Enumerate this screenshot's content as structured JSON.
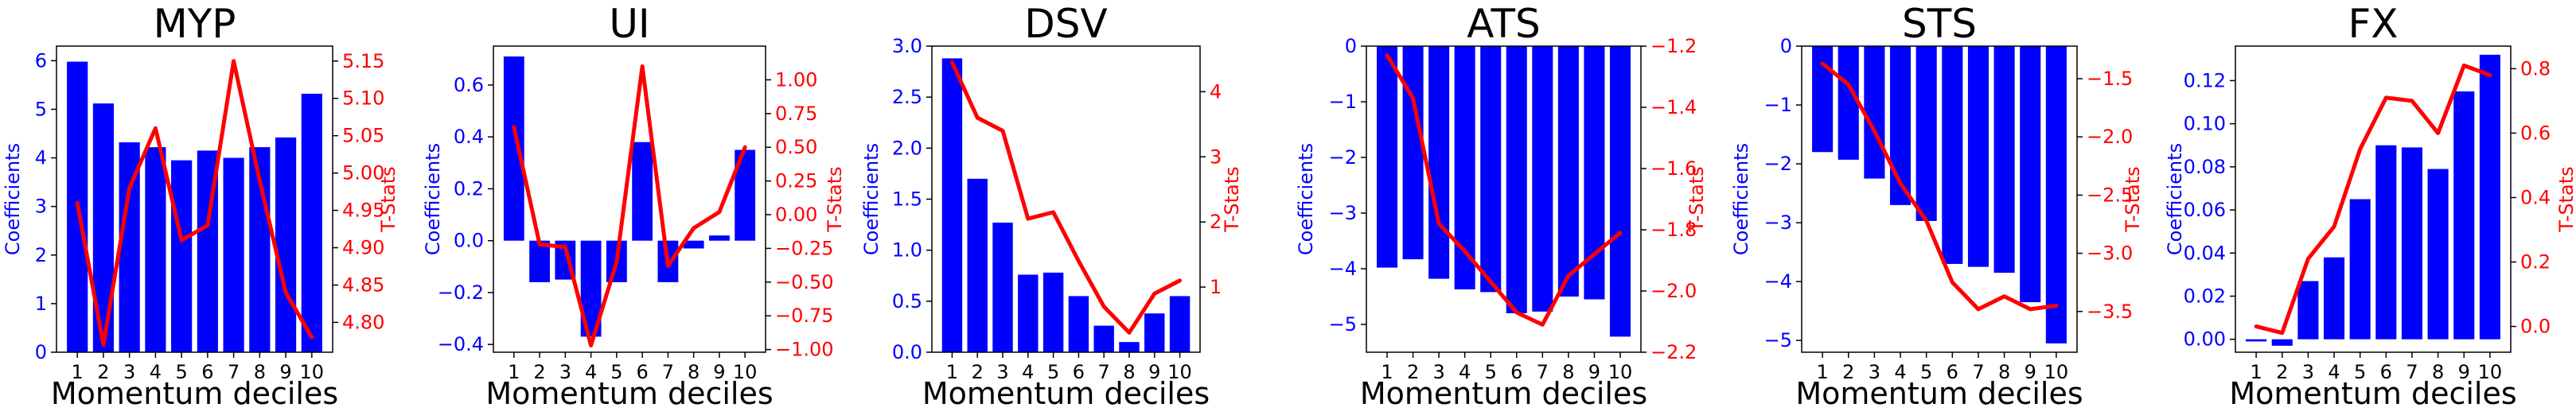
{
  "colors": {
    "bars": "#0000ff",
    "line": "#ff0000",
    "frame": "#000000"
  },
  "chart_data": [
    {
      "type": "bar",
      "title": "MYP",
      "xlabel": "Momentum deciles",
      "ylabel": "Coefficients",
      "y2label": "T-Stats",
      "categories": [
        "1",
        "2",
        "3",
        "4",
        "5",
        "6",
        "7",
        "8",
        "9",
        "10"
      ],
      "ylim": [
        0,
        6.3
      ],
      "yticks": [
        0,
        1,
        2,
        3,
        4,
        5,
        6
      ],
      "ytick_labels": [
        "0",
        "1",
        "2",
        "3",
        "4",
        "5",
        "6"
      ],
      "y2lim": [
        4.76,
        5.17
      ],
      "y2ticks": [
        4.8,
        4.85,
        4.9,
        4.95,
        5.0,
        5.05,
        5.1,
        5.15
      ],
      "y2tick_labels": [
        "4.80",
        "4.85",
        "4.90",
        "4.95",
        "5.00",
        "5.05",
        "5.10",
        "5.15"
      ],
      "series": [
        {
          "kind": "bar",
          "values": [
            5.98,
            5.12,
            4.32,
            4.22,
            3.95,
            4.15,
            4.0,
            4.22,
            4.42,
            5.32
          ]
        },
        {
          "kind": "line",
          "values": [
            4.96,
            4.77,
            4.98,
            5.06,
            4.91,
            4.93,
            5.15,
            4.99,
            4.84,
            4.78
          ]
        }
      ]
    },
    {
      "type": "bar",
      "title": "UI",
      "xlabel": "Momentum deciles",
      "ylabel": "Coefficients",
      "y2label": "T-Stats",
      "categories": [
        "1",
        "2",
        "3",
        "4",
        "5",
        "6",
        "7",
        "8",
        "9",
        "10"
      ],
      "ylim": [
        -0.43,
        0.75
      ],
      "yticks": [
        -0.4,
        -0.2,
        0.0,
        0.2,
        0.4,
        0.6
      ],
      "ytick_labels": [
        "−0.4",
        "−0.2",
        "0.0",
        "0.2",
        "0.4",
        "0.6"
      ],
      "y2lim": [
        -1.02,
        1.25
      ],
      "y2ticks": [
        -1.0,
        -0.75,
        -0.5,
        -0.25,
        0.0,
        0.25,
        0.5,
        0.75,
        1.0
      ],
      "y2tick_labels": [
        "−1.00",
        "−0.75",
        "−0.50",
        "−0.25",
        "0.00",
        "0.25",
        "0.50",
        "0.75",
        "1.00"
      ],
      "series": [
        {
          "kind": "bar",
          "values": [
            0.71,
            -0.16,
            -0.15,
            -0.37,
            -0.16,
            0.38,
            -0.16,
            -0.03,
            0.02,
            0.35
          ]
        },
        {
          "kind": "line",
          "values": [
            0.65,
            -0.22,
            -0.24,
            -0.97,
            -0.35,
            1.1,
            -0.38,
            -0.1,
            0.02,
            0.5
          ]
        }
      ]
    },
    {
      "type": "bar",
      "title": "DSV",
      "xlabel": "Momentum deciles",
      "ylabel": "Coefficients",
      "y2label": "T-Stats",
      "categories": [
        "1",
        "2",
        "3",
        "4",
        "5",
        "6",
        "7",
        "8",
        "9",
        "10"
      ],
      "ylim": [
        0,
        3.0
      ],
      "yticks": [
        0.0,
        0.5,
        1.0,
        1.5,
        2.0,
        2.5,
        3.0
      ],
      "ytick_labels": [
        "0.0",
        "0.5",
        "1.0",
        "1.5",
        "2.0",
        "2.5",
        "3.0"
      ],
      "y2lim": [
        0,
        4.7
      ],
      "y2ticks": [
        1,
        2,
        3,
        4
      ],
      "y2tick_labels": [
        "1",
        "2",
        "3",
        "4"
      ],
      "series": [
        {
          "kind": "bar",
          "values": [
            2.88,
            1.7,
            1.27,
            0.76,
            0.78,
            0.55,
            0.26,
            0.1,
            0.38,
            0.55
          ]
        },
        {
          "kind": "line",
          "values": [
            4.45,
            3.6,
            3.4,
            2.05,
            2.15,
            1.4,
            0.7,
            0.3,
            0.9,
            1.1
          ]
        }
      ]
    },
    {
      "type": "bar",
      "title": "ATS",
      "xlabel": "Momentum deciles",
      "ylabel": "Coefficients",
      "y2label": "T-Stats",
      "categories": [
        "1",
        "2",
        "3",
        "4",
        "5",
        "6",
        "7",
        "8",
        "9",
        "10"
      ],
      "ylim": [
        -5.5,
        0
      ],
      "yticks": [
        -5,
        -4,
        -3,
        -2,
        -1,
        0
      ],
      "ytick_labels": [
        "−5",
        "−4",
        "−3",
        "−2",
        "−1",
        "0"
      ],
      "y2lim": [
        -2.2,
        -1.2
      ],
      "y2ticks": [
        -2.2,
        -2.0,
        -1.8,
        -1.6,
        -1.4,
        -1.2
      ],
      "y2tick_labels": [
        "−2.2",
        "−2.0",
        "−1.8",
        "−1.6",
        "−1.4",
        "−1.2"
      ],
      "series": [
        {
          "kind": "bar",
          "values": [
            -3.98,
            -3.83,
            -4.18,
            -4.37,
            -4.42,
            -4.8,
            -4.77,
            -4.5,
            -4.55,
            -5.22
          ]
        },
        {
          "kind": "line",
          "values": [
            -1.23,
            -1.37,
            -1.78,
            -1.87,
            -1.97,
            -2.07,
            -2.11,
            -1.95,
            -1.88,
            -1.81
          ]
        }
      ]
    },
    {
      "type": "bar",
      "title": "STS",
      "xlabel": "Momentum deciles",
      "ylabel": "Coefficients",
      "y2label": "T-Stats",
      "categories": [
        "1",
        "2",
        "3",
        "4",
        "5",
        "6",
        "7",
        "8",
        "9",
        "10"
      ],
      "ylim": [
        -5.2,
        0
      ],
      "yticks": [
        -5,
        -4,
        -3,
        -2,
        -1,
        0
      ],
      "ytick_labels": [
        "−5",
        "−4",
        "−3",
        "−2",
        "−1",
        "0"
      ],
      "y2lim": [
        -3.85,
        -1.22
      ],
      "y2ticks": [
        -3.5,
        -3.0,
        -2.5,
        -2.0,
        -1.5
      ],
      "y2tick_labels": [
        "−3.5",
        "−3.0",
        "−2.5",
        "−2.0",
        "−1.5"
      ],
      "series": [
        {
          "kind": "bar",
          "values": [
            -1.8,
            -1.93,
            -2.25,
            -2.7,
            -2.97,
            -3.7,
            -3.75,
            -3.85,
            -4.35,
            -5.05
          ]
        },
        {
          "kind": "line",
          "values": [
            -1.37,
            -1.55,
            -1.95,
            -2.4,
            -2.72,
            -3.25,
            -3.48,
            -3.37,
            -3.48,
            -3.45
          ]
        }
      ]
    },
    {
      "type": "bar",
      "title": "FX",
      "xlabel": "Momentum deciles",
      "ylabel": "Coefficients",
      "y2label": "T-Stats",
      "categories": [
        "1",
        "2",
        "3",
        "4",
        "5",
        "6",
        "7",
        "8",
        "9",
        "10"
      ],
      "ylim": [
        -0.006,
        0.136
      ],
      "yticks": [
        0.0,
        0.02,
        0.04,
        0.06,
        0.08,
        0.1,
        0.12
      ],
      "ytick_labels": [
        "0.00",
        "0.02",
        "0.04",
        "0.06",
        "0.08",
        "0.10",
        "0.12"
      ],
      "y2lim": [
        -0.08,
        0.87
      ],
      "y2ticks": [
        0.0,
        0.2,
        0.4,
        0.6,
        0.8
      ],
      "y2tick_labels": [
        "0.0",
        "0.2",
        "0.4",
        "0.6",
        "0.8"
      ],
      "series": [
        {
          "kind": "bar",
          "values": [
            -0.001,
            -0.003,
            0.027,
            0.038,
            0.065,
            0.09,
            0.089,
            0.079,
            0.115,
            0.132
          ]
        },
        {
          "kind": "line",
          "values": [
            0.0,
            -0.02,
            0.21,
            0.31,
            0.55,
            0.71,
            0.7,
            0.6,
            0.81,
            0.78
          ]
        }
      ]
    }
  ]
}
